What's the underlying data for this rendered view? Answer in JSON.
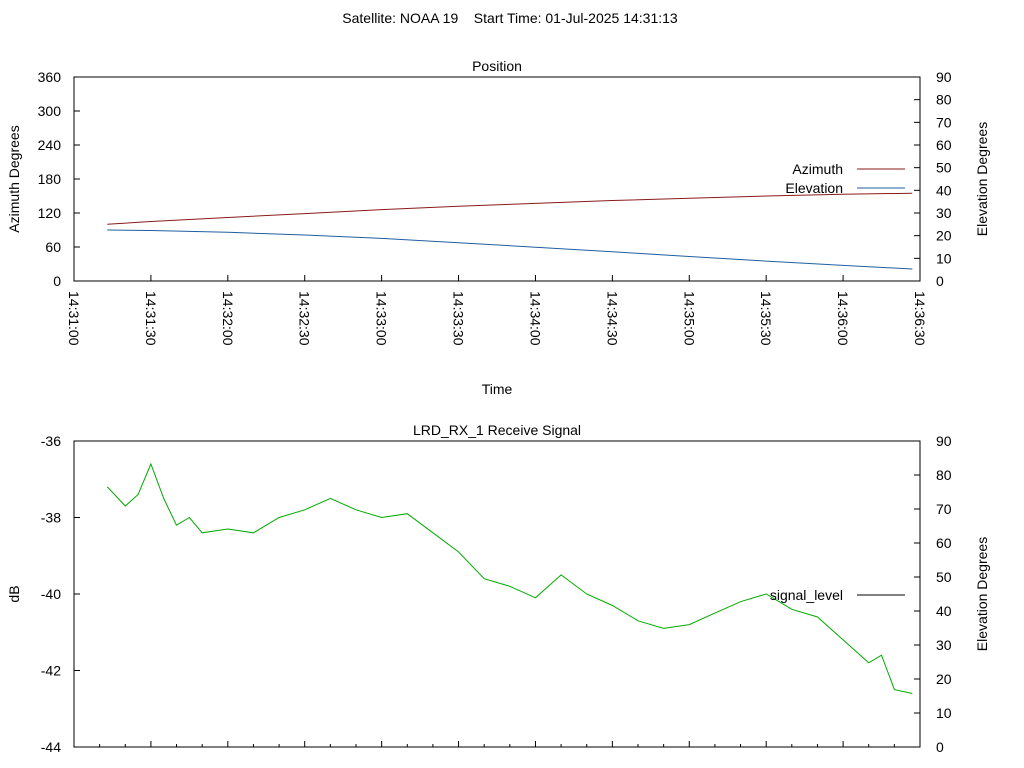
{
  "page_title": "Satellite: NOAA 19    Start Time: 01-Jul-2025 14:31:13",
  "colors": {
    "azimuth": "#8B1A1A",
    "elevation": "#1F5FA0",
    "signal": "#00AA00",
    "legend_signal_line": "#000000",
    "axis": "#000000",
    "background": "#FFFFFF"
  },
  "chart_data": [
    {
      "type": "line",
      "title": "Position",
      "xlabel": "Time",
      "ylabel": "Azimuth Degrees",
      "y2label": "Elevation Degrees",
      "xlim": [
        "14:31:00",
        "14:36:30"
      ],
      "ylim": [
        0,
        360
      ],
      "y2lim": [
        0,
        90
      ],
      "xticks": [
        "14:31:00",
        "14:31:30",
        "14:32:00",
        "14:32:30",
        "14:33:00",
        "14:33:30",
        "14:34:00",
        "14:34:30",
        "14:35:00",
        "14:35:30",
        "14:36:00",
        "14:36:30"
      ],
      "yticks": [
        "0",
        "60",
        "120",
        "180",
        "240",
        "300",
        "360"
      ],
      "y2ticks": [
        "0",
        "10",
        "20",
        "30",
        "40",
        "50",
        "60",
        "70",
        "80",
        "90"
      ],
      "legend_position": "right",
      "series": [
        {
          "name": "Azimuth",
          "axis": "left",
          "x": [
            "14:31:13",
            "14:31:30",
            "14:32:00",
            "14:32:30",
            "14:33:00",
            "14:33:30",
            "14:34:00",
            "14:34:30",
            "14:35:00",
            "14:35:30",
            "14:36:00",
            "14:36:27"
          ],
          "values": [
            100,
            105,
            112,
            119,
            126,
            132,
            137,
            142,
            146,
            150,
            153,
            155
          ]
        },
        {
          "name": "Elevation",
          "axis": "right",
          "x": [
            "14:31:13",
            "14:31:30",
            "14:32:00",
            "14:32:30",
            "14:33:00",
            "14:33:30",
            "14:34:00",
            "14:34:30",
            "14:35:00",
            "14:35:30",
            "14:36:00",
            "14:36:27"
          ],
          "values": [
            22.5,
            22.3,
            21.5,
            20.3,
            18.8,
            16.9,
            14.9,
            12.9,
            10.8,
            8.8,
            6.9,
            5.3
          ]
        }
      ]
    },
    {
      "type": "line",
      "title": "LRD_RX_1 Receive Signal",
      "ylabel": "dB",
      "y2label": "Elevation Degrees",
      "xlim": [
        "14:31:00",
        "14:36:30"
      ],
      "ylim": [
        -44,
        -36
      ],
      "y2lim": [
        0,
        90
      ],
      "yticks": [
        "-36",
        "-38",
        "-40",
        "-42",
        "-44"
      ],
      "y2ticks": [
        "0",
        "10",
        "20",
        "30",
        "40",
        "50",
        "60",
        "70",
        "80",
        "90"
      ],
      "legend_position": "right",
      "series": [
        {
          "name": "signal_level",
          "axis": "left",
          "x": [
            "14:31:13",
            "14:31:20",
            "14:31:25",
            "14:31:30",
            "14:31:35",
            "14:31:40",
            "14:31:45",
            "14:31:50",
            "14:32:00",
            "14:32:10",
            "14:32:20",
            "14:32:30",
            "14:32:40",
            "14:32:50",
            "14:33:00",
            "14:33:10",
            "14:33:20",
            "14:33:30",
            "14:33:40",
            "14:33:50",
            "14:34:00",
            "14:34:10",
            "14:34:20",
            "14:34:30",
            "14:34:40",
            "14:34:50",
            "14:35:00",
            "14:35:10",
            "14:35:20",
            "14:35:30",
            "14:35:40",
            "14:35:50",
            "14:36:00",
            "14:36:10",
            "14:36:15",
            "14:36:20",
            "14:36:27"
          ],
          "values": [
            -37.2,
            -37.7,
            -37.4,
            -36.6,
            -37.5,
            -38.2,
            -38.0,
            -38.4,
            -38.3,
            -38.4,
            -38.0,
            -37.8,
            -37.5,
            -37.8,
            -38.0,
            -37.9,
            -38.4,
            -38.9,
            -39.6,
            -39.8,
            -40.1,
            -39.5,
            -40.0,
            -40.3,
            -40.7,
            -40.9,
            -40.8,
            -40.5,
            -40.2,
            -40.0,
            -40.4,
            -40.6,
            -41.2,
            -41.8,
            -41.6,
            -42.5,
            -42.6
          ]
        }
      ]
    }
  ]
}
